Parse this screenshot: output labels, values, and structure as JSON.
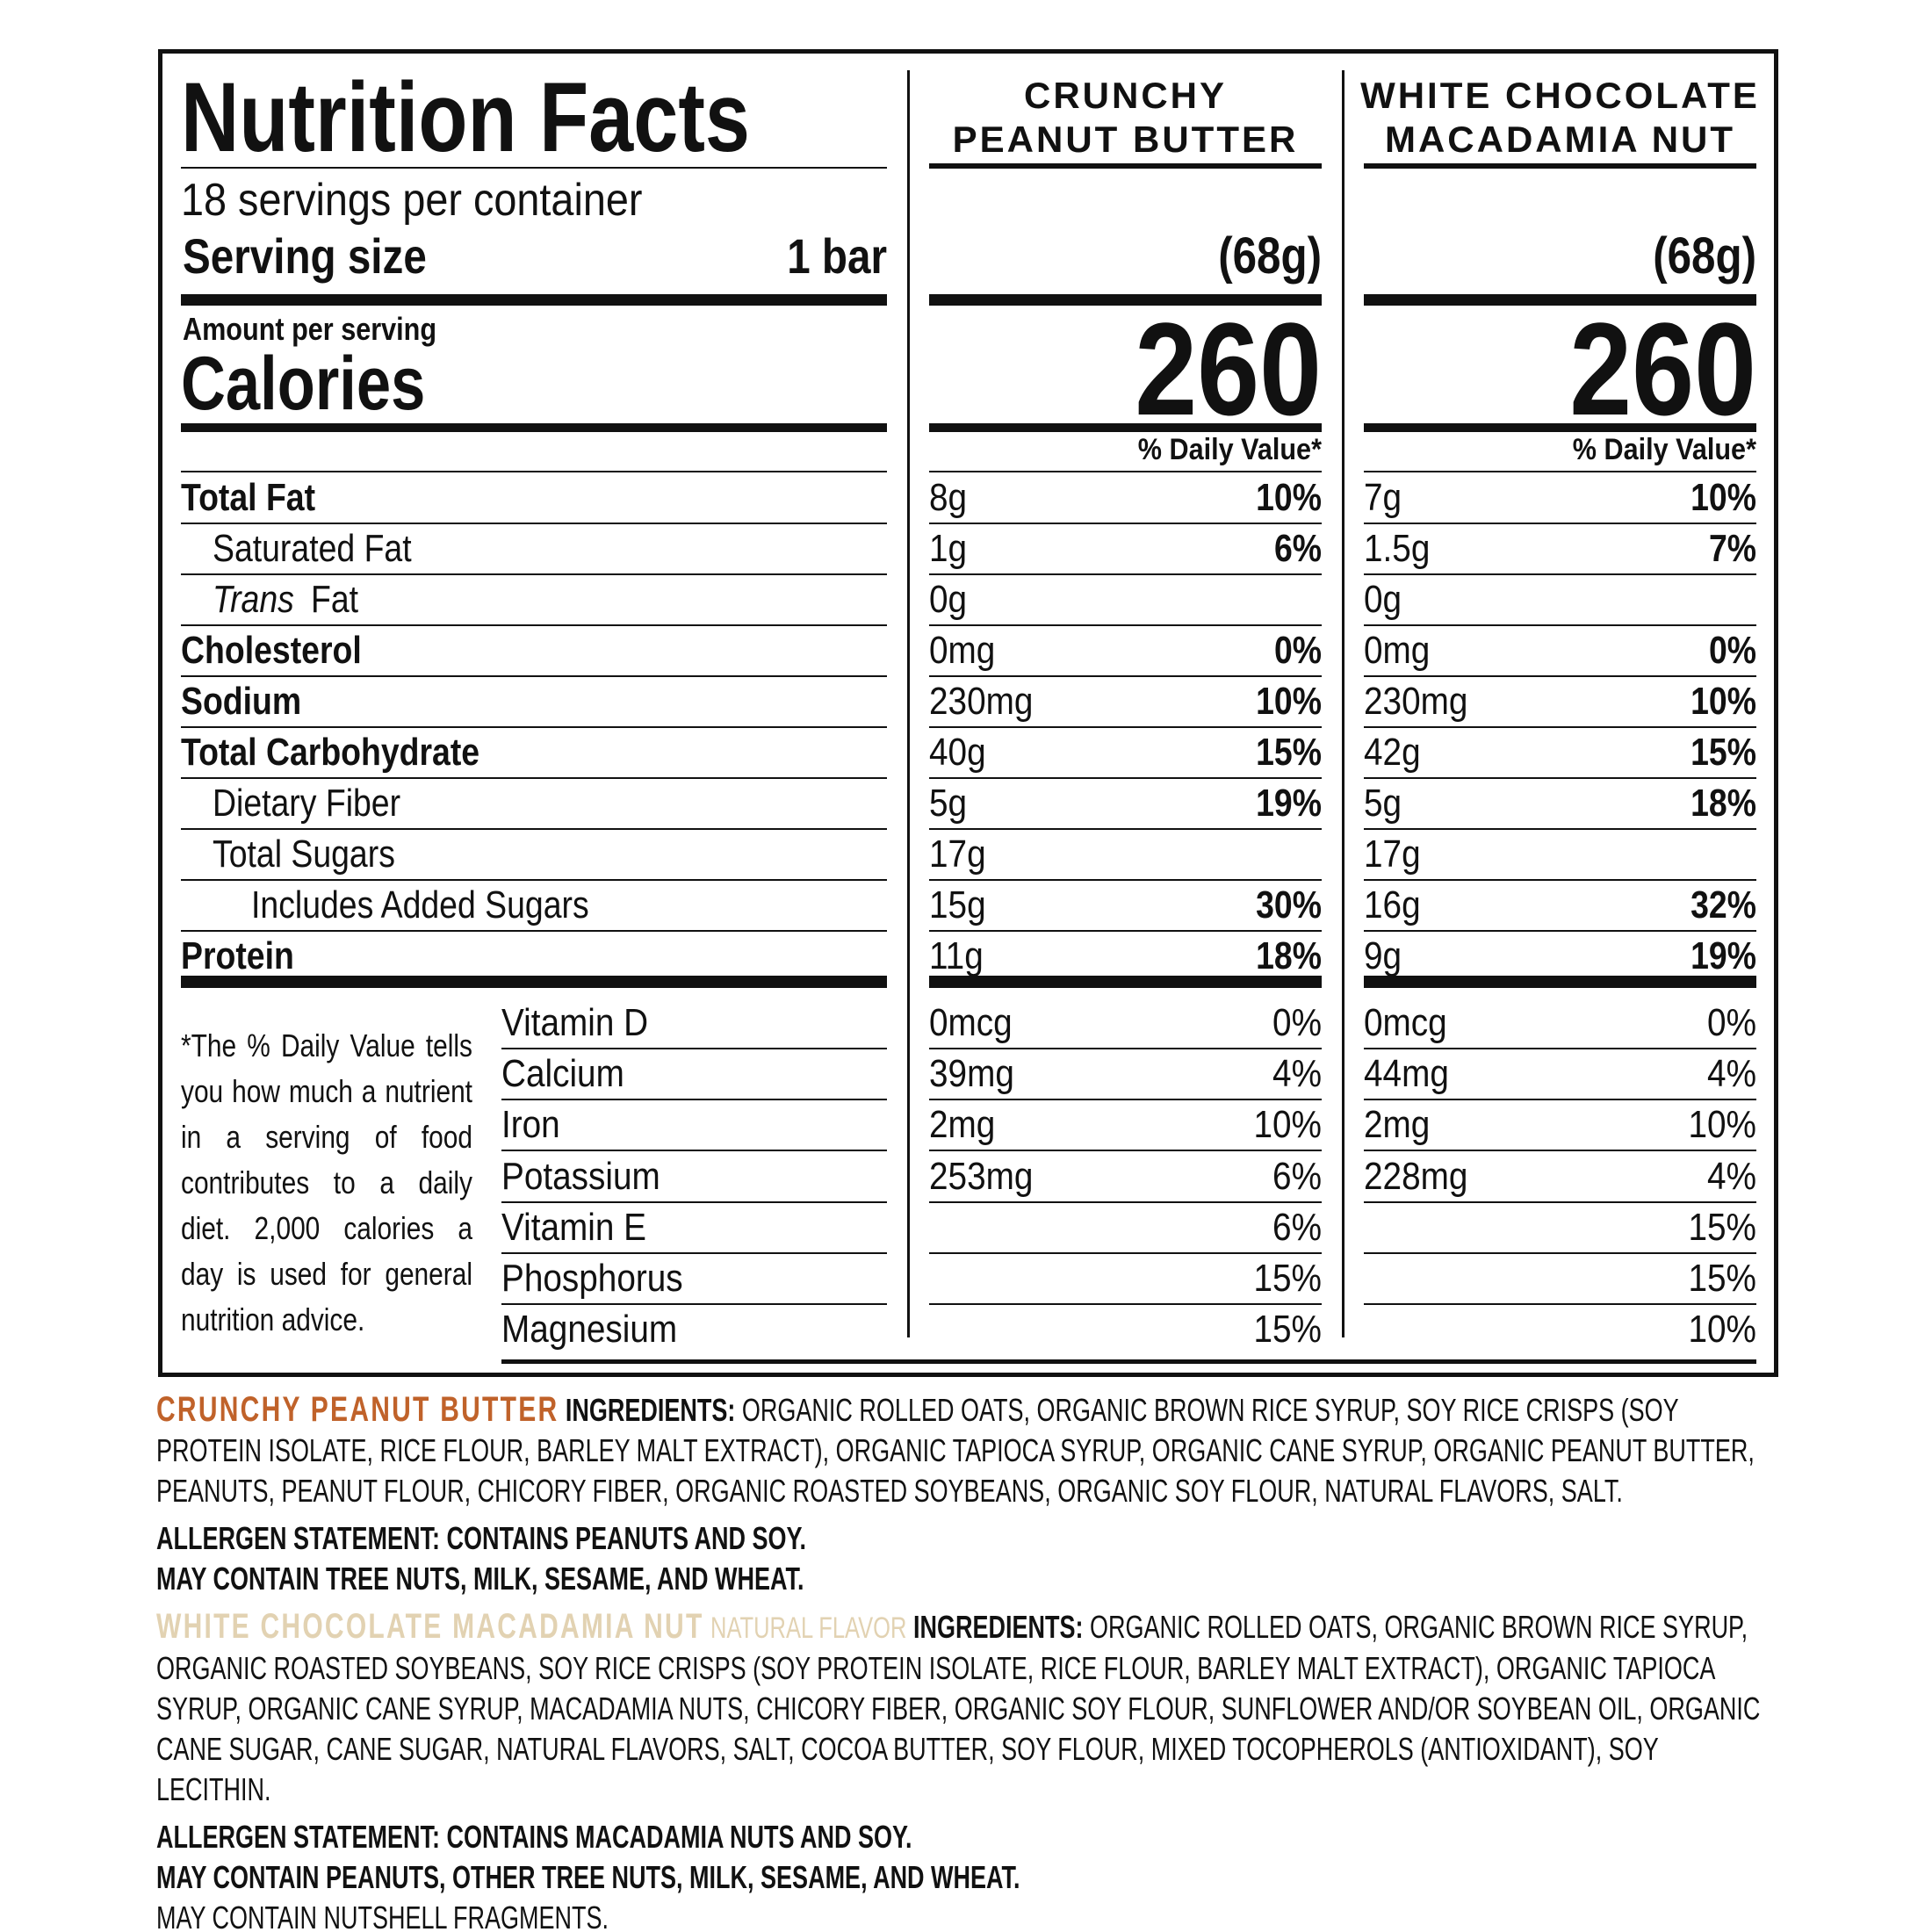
{
  "title": "Nutrition Facts",
  "servings": "18 servings per container",
  "serving_size_label": "Serving size",
  "serving_size": "1 bar",
  "amount_per_serving": "Amount per serving",
  "calories_label": "Calories",
  "daily_value_header": "% Daily Value*",
  "nutrients": [
    {
      "label": "Total Fat"
    },
    {
      "label": "Saturated Fat"
    },
    {
      "label": [
        "Trans",
        "Fat"
      ]
    },
    {
      "label": "Cholesterol"
    },
    {
      "label": "Sodium"
    },
    {
      "label": "Total Carbohydrate"
    },
    {
      "label": "Dietary Fiber"
    },
    {
      "label": "Total Sugars"
    },
    {
      "label": "Includes Added Sugars"
    },
    {
      "label": "Protein"
    }
  ],
  "vitamins": [
    "Vitamin D",
    "Calcium",
    "Iron",
    "Potassium",
    "Vitamin E",
    "Phosphorus",
    "Magnesium"
  ],
  "footnote": "*The % Daily Value tells you how much a nutrient in a serving of food contributes to a daily diet. 2,000 calories a day is used for general nutrition advice.",
  "products": [
    {
      "header": [
        "CRUNCHY",
        "PEANUT BUTTER"
      ],
      "serving_weight": "(68g)",
      "calories": "260",
      "nutrients": [
        [
          "8g",
          "10%"
        ],
        [
          "1g",
          "6%"
        ],
        [
          "0g",
          null
        ],
        [
          "0mg",
          "0%"
        ],
        [
          "230mg",
          "10%"
        ],
        [
          "40g",
          "15%"
        ],
        [
          "5g",
          "19%"
        ],
        [
          "17g",
          null
        ],
        [
          "15g",
          "30%"
        ],
        [
          "11g",
          "18%"
        ]
      ],
      "vitamins": [
        [
          "0mcg",
          "0%"
        ],
        [
          "39mg",
          "4%"
        ],
        [
          "2mg",
          "10%"
        ],
        [
          "253mg",
          "6%"
        ],
        [
          null,
          "6%"
        ],
        [
          null,
          "15%"
        ],
        [
          null,
          "15%"
        ]
      ]
    },
    {
      "header": [
        "WHITE CHOCOLATE",
        "MACADAMIA NUT"
      ],
      "serving_weight": "(68g)",
      "calories": "260",
      "nutrients": [
        [
          "7g",
          "10%"
        ],
        [
          "1.5g",
          "7%"
        ],
        [
          "0g",
          null
        ],
        [
          "0mg",
          "0%"
        ],
        [
          "230mg",
          "10%"
        ],
        [
          "42g",
          "15%"
        ],
        [
          "5g",
          "18%"
        ],
        [
          "17g",
          null
        ],
        [
          "16g",
          "32%"
        ],
        [
          "9g",
          "19%"
        ]
      ],
      "vitamins": [
        [
          "0mcg",
          "0%"
        ],
        [
          "44mg",
          "4%"
        ],
        [
          "2mg",
          "10%"
        ],
        [
          "228mg",
          "4%"
        ],
        [
          null,
          "15%"
        ],
        [
          null,
          "15%"
        ],
        [
          null,
          "10%"
        ]
      ]
    }
  ],
  "ingredients": [
    {
      "name": "CRUNCHY PEANUT BUTTER",
      "name_color": "#c0622a",
      "label": "INGREDIENTS:",
      "text": "ORGANIC ROLLED OATS, ORGANIC BROWN RICE SYRUP, SOY RICE CRISPS (SOY PROTEIN ISOLATE, RICE FLOUR, BARLEY MALT EXTRACT), ORGANIC TAPIOCA SYRUP, ORGANIC CANE SYRUP, ORGANIC PEANUT BUTTER, PEANUTS, PEANUT FLOUR, CHICORY FIBER, ORGANIC ROASTED SOYBEANS, ORGANIC SOY FLOUR, NATURAL FLAVORS, SALT.",
      "allergens": [
        "ALLERGEN STATEMENT: CONTAINS PEANUTS AND SOY.",
        "MAY CONTAIN TREE NUTS, MILK, SESAME, AND WHEAT."
      ]
    },
    {
      "name": "WHITE CHOCOLATE MACADAMIA NUT",
      "flavor": "NATURAL FLAVOR",
      "name_color": "#e2d2b2",
      "label": "INGREDIENTS:",
      "text": "ORGANIC ROLLED OATS, ORGANIC BROWN RICE SYRUP, ORGANIC ROASTED SOYBEANS, SOY RICE CRISPS (SOY PROTEIN ISOLATE, RICE FLOUR, BARLEY MALT EXTRACT), ORGANIC TAPIOCA SYRUP, ORGANIC CANE SYRUP, MACADAMIA NUTS, CHICORY FIBER, ORGANIC SOY FLOUR, SUNFLOWER AND/OR SOYBEAN OIL, ORGANIC CANE SUGAR, CANE SUGAR, NATURAL FLAVORS, SALT, COCOA BUTTER, SOY FLOUR, MIXED TOCOPHEROLS (ANTIOXIDANT), SOY LECITHIN.",
      "allergens": [
        "ALLERGEN STATEMENT: CONTAINS MACADAMIA NUTS AND SOY.",
        "MAY CONTAIN PEANUTS, OTHER TREE NUTS, MILK, SESAME, AND WHEAT."
      ],
      "note": "MAY CONTAIN NUTSHELL FRAGMENTS."
    }
  ]
}
